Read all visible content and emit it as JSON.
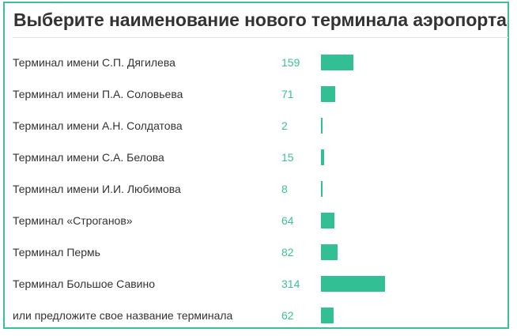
{
  "poll": {
    "title": "Выберите наименование нового терминала аэропорта",
    "accent_color": "#3dbf98",
    "bar_color": "#33bf94",
    "max_votes": 314,
    "options": [
      {
        "label": "Терминал имени С.П. Дягилева",
        "votes": "159"
      },
      {
        "label": "Терминал имени П.А. Соловьева",
        "votes": "71"
      },
      {
        "label": "Терминал имени А.Н. Солдатова",
        "votes": "2"
      },
      {
        "label": "Терминал имени С.А. Белова",
        "votes": "15"
      },
      {
        "label": "Терминал имени И.И. Любимова",
        "votes": "8"
      },
      {
        "label": "Терминал «Строганов»",
        "votes": "64"
      },
      {
        "label": "Терминал Пермь",
        "votes": "82"
      },
      {
        "label": "Терминал Большое Савино",
        "votes": "314"
      },
      {
        "label": "или предложите свое название терминала",
        "votes": "62"
      }
    ]
  }
}
